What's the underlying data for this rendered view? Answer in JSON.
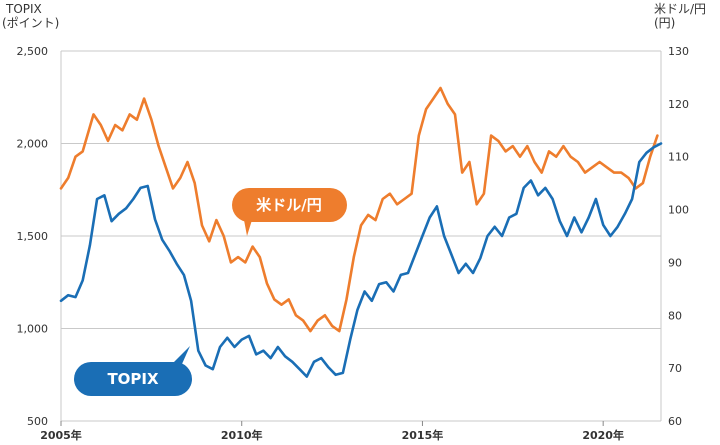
{
  "chart_data": {
    "type": "line",
    "left_axis": {
      "title_lines": [
        "TOPIX",
        "(ポイント)"
      ],
      "ticks": [
        500,
        1000,
        1500,
        2000,
        2500
      ],
      "tick_labels": [
        "500",
        "1,000",
        "1,500",
        "2,000",
        "2,500"
      ],
      "range": [
        500,
        2500
      ]
    },
    "right_axis": {
      "title_lines": [
        "米ドル/円",
        "(円)"
      ],
      "ticks": [
        60,
        70,
        80,
        90,
        100,
        110,
        120,
        130
      ],
      "tick_labels": [
        "60",
        "70",
        "80",
        "90",
        "100",
        "110",
        "120",
        "130"
      ],
      "range": [
        60,
        130
      ]
    },
    "x_axis": {
      "range": [
        2005.0,
        2021.6
      ],
      "ticks": [
        2005,
        2010,
        2015,
        2020
      ],
      "tick_labels": [
        "2005年",
        "2010年",
        "2015年",
        "2020年"
      ]
    },
    "grid": true,
    "series": [
      {
        "name": "米ドル/円",
        "label": "米ドル/円",
        "axis": "right",
        "color": "#ee7d2d",
        "x": [
          2005.0,
          2005.2,
          2005.4,
          2005.6,
          2005.9,
          2006.1,
          2006.3,
          2006.5,
          2006.7,
          2006.9,
          2007.1,
          2007.3,
          2007.5,
          2007.7,
          2007.9,
          2008.1,
          2008.3,
          2008.5,
          2008.7,
          2008.9,
          2009.1,
          2009.3,
          2009.5,
          2009.7,
          2009.9,
          2010.1,
          2010.3,
          2010.5,
          2010.7,
          2010.9,
          2011.1,
          2011.3,
          2011.5,
          2011.7,
          2011.9,
          2012.1,
          2012.3,
          2012.5,
          2012.7,
          2012.9,
          2013.1,
          2013.3,
          2013.5,
          2013.7,
          2013.9,
          2014.1,
          2014.3,
          2014.5,
          2014.7,
          2014.9,
          2015.1,
          2015.3,
          2015.5,
          2015.7,
          2015.9,
          2016.1,
          2016.3,
          2016.5,
          2016.7,
          2016.9,
          2017.1,
          2017.3,
          2017.5,
          2017.7,
          2017.9,
          2018.1,
          2018.3,
          2018.5,
          2018.7,
          2018.9,
          2019.1,
          2019.3,
          2019.5,
          2019.7,
          2019.9,
          2020.1,
          2020.3,
          2020.5,
          2020.7,
          2020.9,
          2021.1,
          2021.3,
          2021.5
        ],
        "y": [
          104,
          106,
          110,
          111,
          118,
          116,
          113,
          116,
          115,
          118,
          117,
          121,
          117,
          112,
          108,
          104,
          106,
          109,
          105,
          97,
          94,
          98,
          95,
          90,
          91,
          90,
          93,
          91,
          86,
          83,
          82,
          83,
          80,
          79,
          77,
          79,
          80,
          78,
          77,
          83,
          91,
          97,
          99,
          98,
          102,
          103,
          101,
          102,
          103,
          114,
          119,
          121,
          123,
          120,
          118,
          107,
          109,
          101,
          103,
          114,
          113,
          111,
          112,
          110,
          112,
          109,
          107,
          111,
          110,
          112,
          110,
          109,
          107,
          108,
          109,
          108,
          107,
          107,
          106,
          104,
          105,
          110,
          114
        ]
      },
      {
        "name": "TOPIX",
        "label": "TOPIX",
        "axis": "left",
        "color": "#1a6eb5",
        "x": [
          2005.0,
          2005.2,
          2005.4,
          2005.6,
          2005.8,
          2006.0,
          2006.2,
          2006.4,
          2006.6,
          2006.8,
          2007.0,
          2007.2,
          2007.4,
          2007.6,
          2007.8,
          2008.0,
          2008.2,
          2008.4,
          2008.6,
          2008.8,
          2009.0,
          2009.2,
          2009.4,
          2009.6,
          2009.8,
          2010.0,
          2010.2,
          2010.4,
          2010.6,
          2010.8,
          2011.0,
          2011.2,
          2011.4,
          2011.6,
          2011.8,
          2012.0,
          2012.2,
          2012.4,
          2012.6,
          2012.8,
          2013.0,
          2013.2,
          2013.4,
          2013.6,
          2013.8,
          2014.0,
          2014.2,
          2014.4,
          2014.6,
          2014.8,
          2015.0,
          2015.2,
          2015.4,
          2015.6,
          2015.8,
          2016.0,
          2016.2,
          2016.4,
          2016.6,
          2016.8,
          2017.0,
          2017.2,
          2017.4,
          2017.6,
          2017.8,
          2018.0,
          2018.2,
          2018.4,
          2018.6,
          2018.8,
          2019.0,
          2019.2,
          2019.4,
          2019.6,
          2019.8,
          2020.0,
          2020.2,
          2020.4,
          2020.6,
          2020.8,
          2021.0,
          2021.2,
          2021.4,
          2021.6
        ],
        "y": [
          1150,
          1180,
          1170,
          1260,
          1450,
          1700,
          1720,
          1580,
          1620,
          1650,
          1700,
          1760,
          1770,
          1590,
          1480,
          1420,
          1350,
          1290,
          1150,
          880,
          800,
          780,
          900,
          950,
          900,
          940,
          960,
          860,
          880,
          840,
          900,
          850,
          820,
          780,
          740,
          820,
          840,
          790,
          750,
          760,
          940,
          1100,
          1200,
          1150,
          1240,
          1250,
          1200,
          1290,
          1300,
          1400,
          1500,
          1600,
          1660,
          1500,
          1400,
          1300,
          1350,
          1300,
          1380,
          1500,
          1550,
          1500,
          1600,
          1620,
          1760,
          1800,
          1720,
          1760,
          1700,
          1580,
          1500,
          1600,
          1520,
          1600,
          1700,
          1560,
          1500,
          1550,
          1620,
          1700,
          1900,
          1950,
          1980,
          2000
        ]
      }
    ]
  },
  "colors": {
    "grid": "#c9c9c9",
    "axis_text": "#333333"
  }
}
